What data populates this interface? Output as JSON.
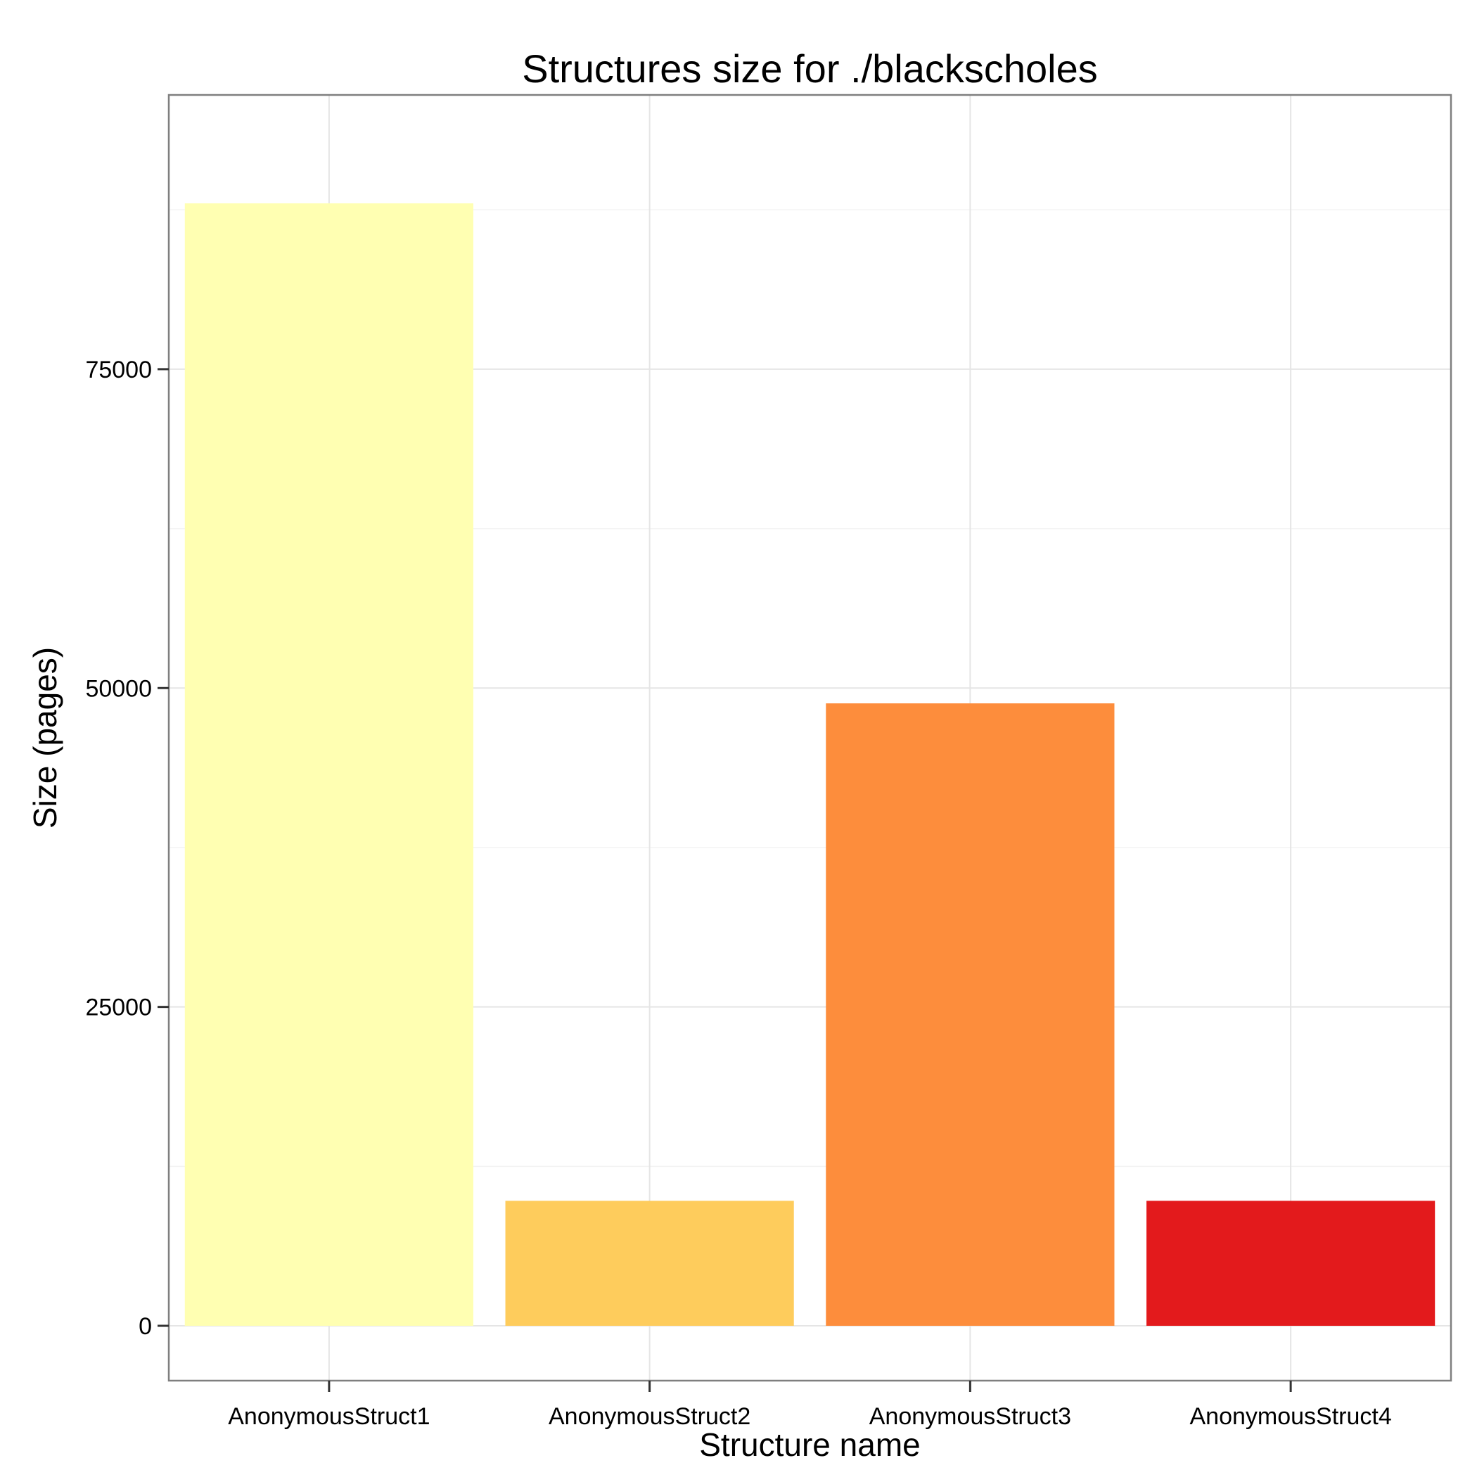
{
  "chart_data": {
    "type": "bar",
    "title": "Structures size for ./blackscholes",
    "xlabel": "Structure name",
    "ylabel": "Size (pages)",
    "categories": [
      "AnonymousStruct1",
      "AnonymousStruct2",
      "AnonymousStruct3",
      "AnonymousStruct4"
    ],
    "values": [
      88000,
      9800,
      48800,
      9800
    ],
    "colors": [
      "#ffffb2",
      "#fecc5c",
      "#fd8d3c",
      "#e31a1c"
    ],
    "ylim": [
      -4300,
      96500
    ],
    "yticks": [
      0,
      25000,
      50000,
      75000
    ],
    "ytick_labels": [
      "0",
      "25000",
      "50000",
      "75000"
    ],
    "grid": true,
    "legend": false
  }
}
